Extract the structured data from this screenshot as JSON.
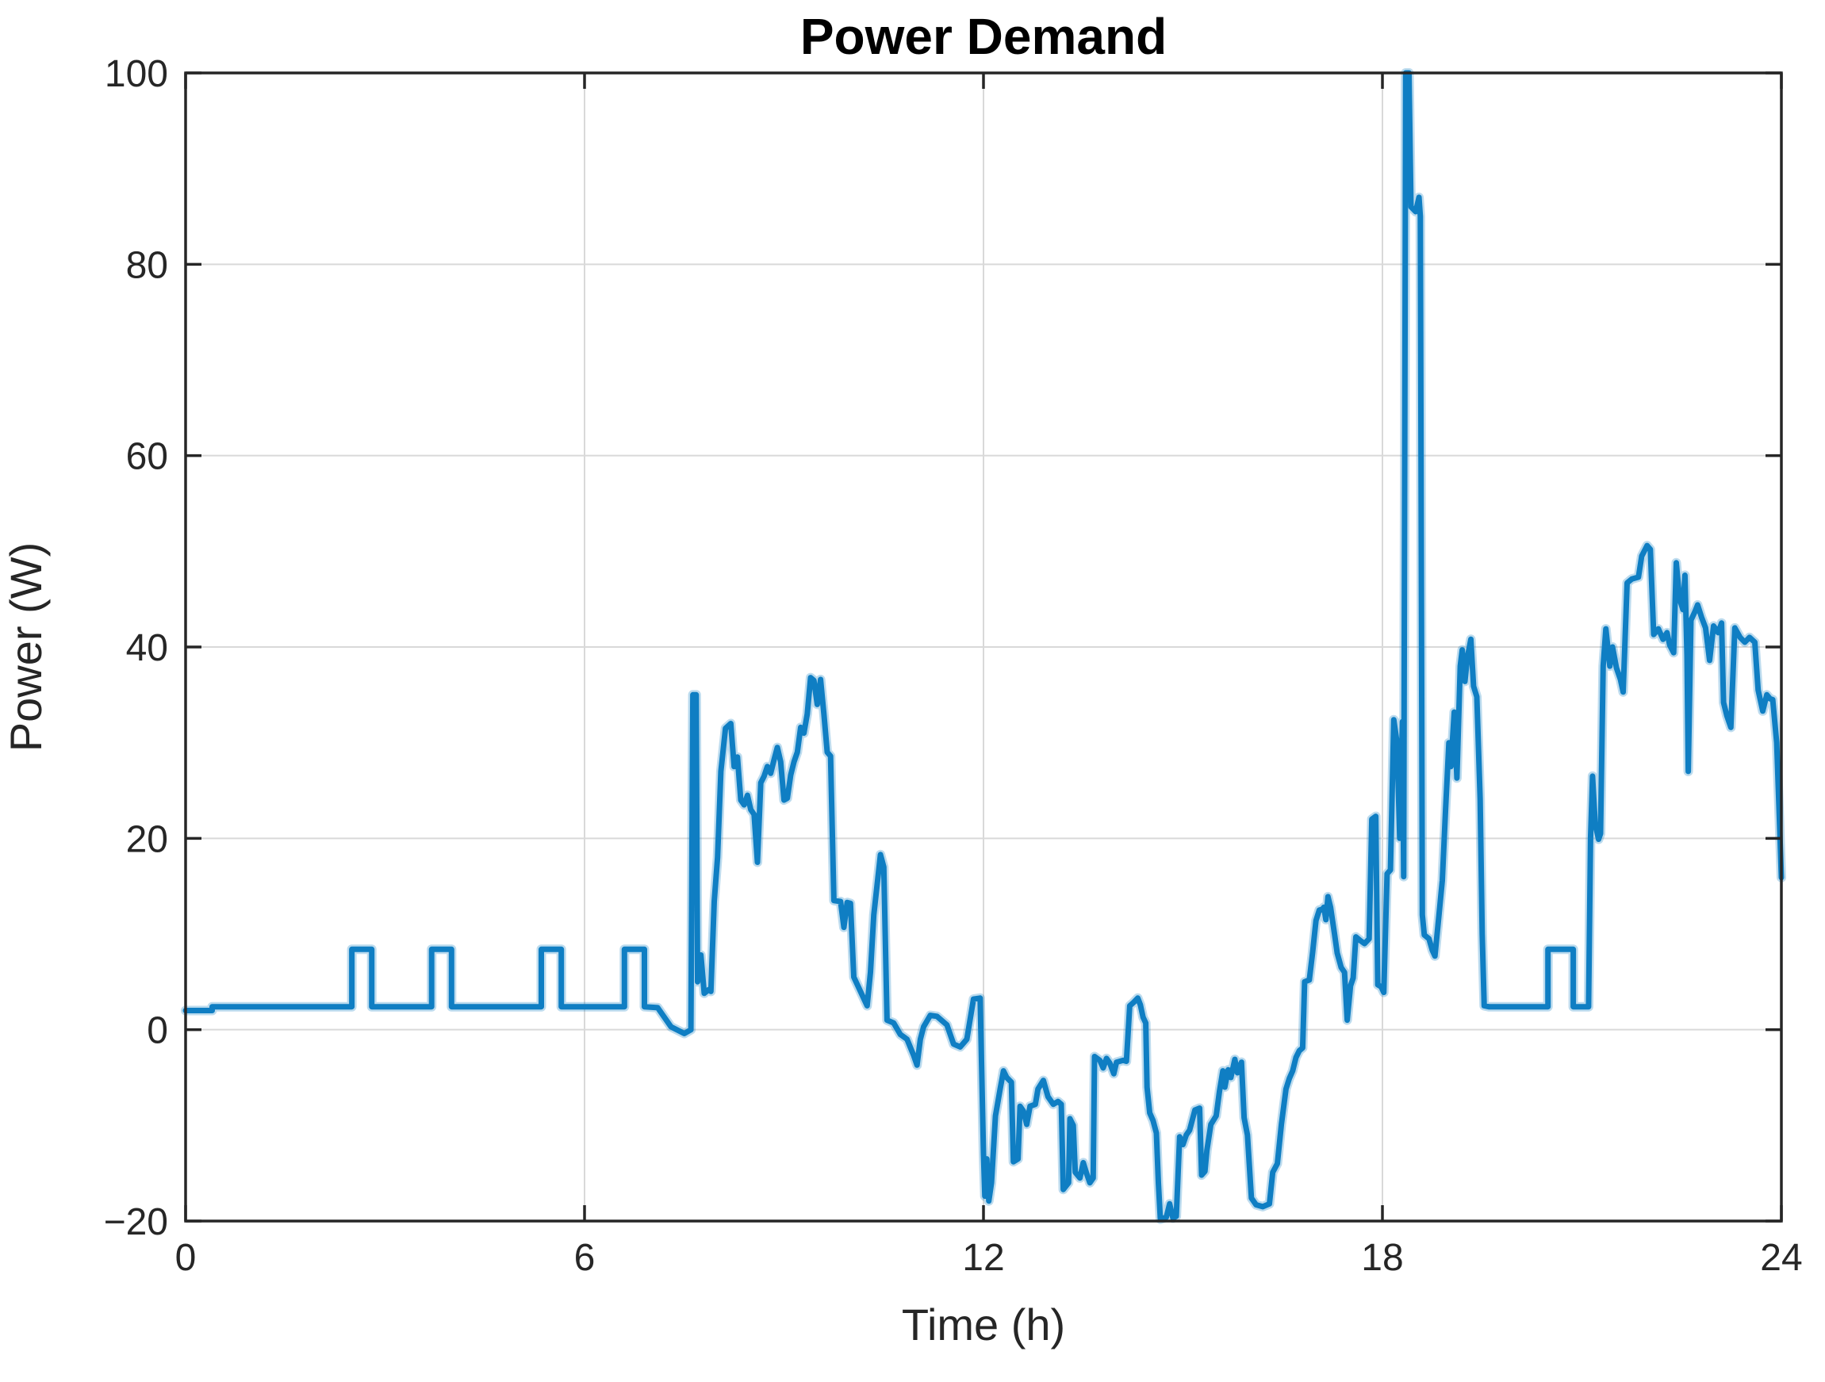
{
  "figure": {
    "title": "Power Demand",
    "background_color": "#ffffff"
  },
  "chart_data": {
    "type": "line",
    "title": "Power Demand",
    "xlabel": "Time (h)",
    "ylabel": "Power (W)",
    "xlim": [
      0,
      24
    ],
    "ylim": [
      -20,
      100
    ],
    "grid": true,
    "legend": "none",
    "line_color": "#0F7EC3",
    "line_halo_color": "rgba(15,126,195,0.28)",
    "grid_color": "#d9d9d9",
    "axis_color": "#262626",
    "x_ticks": [
      0,
      6,
      12,
      18,
      24
    ],
    "x_tick_labels": [
      "0",
      "6",
      "12",
      "18",
      "24"
    ],
    "y_ticks": [
      -20,
      0,
      20,
      40,
      60,
      80,
      100
    ],
    "y_tick_labels": [
      "−20",
      "0",
      "20",
      "40",
      "60",
      "80",
      "100"
    ],
    "series": [
      {
        "name": "power_demand",
        "points": [
          [
            0,
            2.0
          ],
          [
            0.4,
            2.0
          ],
          [
            0.4,
            2.4
          ],
          [
            2.5,
            2.4
          ],
          [
            2.5,
            8.4
          ],
          [
            2.8,
            8.4
          ],
          [
            2.8,
            2.4
          ],
          [
            3.7,
            2.4
          ],
          [
            3.7,
            8.4
          ],
          [
            4.0,
            8.4
          ],
          [
            4.0,
            2.4
          ],
          [
            5.35,
            2.4
          ],
          [
            5.35,
            8.4
          ],
          [
            5.65,
            8.4
          ],
          [
            5.65,
            2.4
          ],
          [
            6.6,
            2.4
          ],
          [
            6.6,
            8.4
          ],
          [
            6.9,
            8.4
          ],
          [
            6.9,
            2.4
          ],
          [
            7.1,
            2.3
          ],
          [
            7.3,
            0.3
          ],
          [
            7.5,
            -0.4
          ],
          [
            7.6,
            0.0
          ],
          [
            7.63,
            35
          ],
          [
            7.68,
            35
          ],
          [
            7.7,
            5
          ],
          [
            7.75,
            7.8
          ],
          [
            7.8,
            3.8
          ],
          [
            7.87,
            4.2
          ],
          [
            7.9,
            4.0
          ],
          [
            7.95,
            13.4
          ],
          [
            8.0,
            18
          ],
          [
            8.05,
            27
          ],
          [
            8.12,
            31.5
          ],
          [
            8.2,
            32
          ],
          [
            8.25,
            27.5
          ],
          [
            8.3,
            28.5
          ],
          [
            8.35,
            24
          ],
          [
            8.4,
            23.5
          ],
          [
            8.45,
            24.5
          ],
          [
            8.5,
            23
          ],
          [
            8.55,
            22.5
          ],
          [
            8.6,
            17.5
          ],
          [
            8.65,
            25.8
          ],
          [
            8.7,
            26.5
          ],
          [
            8.75,
            27.5
          ],
          [
            8.8,
            26.8
          ],
          [
            8.85,
            28.2
          ],
          [
            8.9,
            29.5
          ],
          [
            8.95,
            28
          ],
          [
            9.0,
            24
          ],
          [
            9.05,
            24.2
          ],
          [
            9.1,
            26.6
          ],
          [
            9.15,
            28
          ],
          [
            9.2,
            29
          ],
          [
            9.25,
            31.6
          ],
          [
            9.3,
            31
          ],
          [
            9.35,
            33
          ],
          [
            9.4,
            36.8
          ],
          [
            9.45,
            36.5
          ],
          [
            9.5,
            34
          ],
          [
            9.55,
            36.6
          ],
          [
            9.6,
            33
          ],
          [
            9.65,
            29
          ],
          [
            9.7,
            28.6
          ],
          [
            9.75,
            13.5
          ],
          [
            9.85,
            13.4
          ],
          [
            9.9,
            10.7
          ],
          [
            9.95,
            13.3
          ],
          [
            10.0,
            13.2
          ],
          [
            10.05,
            5.5
          ],
          [
            10.15,
            4.0
          ],
          [
            10.25,
            2.5
          ],
          [
            10.3,
            6
          ],
          [
            10.35,
            12
          ],
          [
            10.45,
            18.3
          ],
          [
            10.5,
            17
          ],
          [
            10.55,
            1.0
          ],
          [
            10.65,
            0.7
          ],
          [
            10.75,
            -0.5
          ],
          [
            10.85,
            -1.0
          ],
          [
            10.95,
            -2.7
          ],
          [
            11.0,
            -3.7
          ],
          [
            11.05,
            -1.0
          ],
          [
            11.1,
            0.3
          ],
          [
            11.2,
            1.5
          ],
          [
            11.3,
            1.4
          ],
          [
            11.45,
            0.5
          ],
          [
            11.55,
            -1.5
          ],
          [
            11.65,
            -1.8
          ],
          [
            11.75,
            -1.0
          ],
          [
            11.85,
            3.2
          ],
          [
            11.95,
            3.3
          ],
          [
            12.0,
            -13
          ],
          [
            12.02,
            -17.4
          ],
          [
            12.05,
            -13.5
          ],
          [
            12.08,
            -17.9
          ],
          [
            12.12,
            -16
          ],
          [
            12.18,
            -9
          ],
          [
            12.25,
            -6.2
          ],
          [
            12.3,
            -4.3
          ],
          [
            12.35,
            -5
          ],
          [
            12.42,
            -5.5
          ],
          [
            12.45,
            -13.8
          ],
          [
            12.52,
            -13.5
          ],
          [
            12.55,
            -8
          ],
          [
            12.6,
            -8.5
          ],
          [
            12.65,
            -9.9
          ],
          [
            12.7,
            -8
          ],
          [
            12.78,
            -7.8
          ],
          [
            12.82,
            -6.2
          ],
          [
            12.9,
            -5.3
          ],
          [
            12.97,
            -7
          ],
          [
            13.05,
            -7.8
          ],
          [
            13.12,
            -7.5
          ],
          [
            13.17,
            -7.8
          ],
          [
            13.2,
            -16.7
          ],
          [
            13.28,
            -16
          ],
          [
            13.3,
            -9.3
          ],
          [
            13.35,
            -10
          ],
          [
            13.38,
            -14.9
          ],
          [
            13.45,
            -15.5
          ],
          [
            13.5,
            -13.9
          ],
          [
            13.55,
            -15
          ],
          [
            13.6,
            -16
          ],
          [
            13.65,
            -15.5
          ],
          [
            13.67,
            -2.8
          ],
          [
            13.75,
            -3.2
          ],
          [
            13.8,
            -4
          ],
          [
            13.85,
            -3
          ],
          [
            13.9,
            -3.5
          ],
          [
            13.96,
            -4.6
          ],
          [
            14.0,
            -3.4
          ],
          [
            14.1,
            -3.2
          ],
          [
            14.15,
            -3.3
          ],
          [
            14.2,
            2.5
          ],
          [
            14.25,
            2.8
          ],
          [
            14.32,
            3.3
          ],
          [
            14.36,
            2.6
          ],
          [
            14.4,
            1.3
          ],
          [
            14.44,
            0.7
          ],
          [
            14.46,
            -6
          ],
          [
            14.5,
            -8.7
          ],
          [
            14.55,
            -9.5
          ],
          [
            14.6,
            -10.8
          ],
          [
            14.63,
            -16
          ],
          [
            14.66,
            -19.8
          ],
          [
            14.75,
            -19.6
          ],
          [
            14.8,
            -18.2
          ],
          [
            14.85,
            -19.7
          ],
          [
            14.9,
            -19.5
          ],
          [
            14.95,
            -11.2
          ],
          [
            15.0,
            -12
          ],
          [
            15.05,
            -11
          ],
          [
            15.1,
            -10.5
          ],
          [
            15.18,
            -8.4
          ],
          [
            15.25,
            -8.2
          ],
          [
            15.28,
            -15.2
          ],
          [
            15.33,
            -14.8
          ],
          [
            15.36,
            -12.6
          ],
          [
            15.42,
            -9.9
          ],
          [
            15.5,
            -9
          ],
          [
            15.55,
            -6.4
          ],
          [
            15.6,
            -4.3
          ],
          [
            15.63,
            -6
          ],
          [
            15.68,
            -4.2
          ],
          [
            15.72,
            -5
          ],
          [
            15.78,
            -3.1
          ],
          [
            15.82,
            -4.5
          ],
          [
            15.88,
            -3.4
          ],
          [
            15.92,
            -9.2
          ],
          [
            15.97,
            -11
          ],
          [
            16.03,
            -17.6
          ],
          [
            16.1,
            -18.3
          ],
          [
            16.2,
            -18.5
          ],
          [
            16.3,
            -18.2
          ],
          [
            16.35,
            -14.9
          ],
          [
            16.42,
            -14
          ],
          [
            16.48,
            -9.9
          ],
          [
            16.55,
            -6.2
          ],
          [
            16.6,
            -5.1
          ],
          [
            16.65,
            -4.3
          ],
          [
            16.7,
            -2.9
          ],
          [
            16.75,
            -2.2
          ],
          [
            16.8,
            -1.9
          ],
          [
            16.83,
            5.0
          ],
          [
            16.9,
            5.2
          ],
          [
            16.95,
            8.1
          ],
          [
            17.0,
            11.4
          ],
          [
            17.05,
            12.5
          ],
          [
            17.1,
            12.6
          ],
          [
            17.12,
            12.8
          ],
          [
            17.15,
            11.5
          ],
          [
            17.18,
            13.9
          ],
          [
            17.22,
            12.8
          ],
          [
            17.28,
            10
          ],
          [
            17.32,
            8
          ],
          [
            17.38,
            6.5
          ],
          [
            17.43,
            6.0
          ],
          [
            17.47,
            1.0
          ],
          [
            17.52,
            4.6
          ],
          [
            17.56,
            5.4
          ],
          [
            17.6,
            9.7
          ],
          [
            17.67,
            9.3
          ],
          [
            17.73,
            9.0
          ],
          [
            17.8,
            9.5
          ],
          [
            17.84,
            22.0
          ],
          [
            17.9,
            22.3
          ],
          [
            17.93,
            4.7
          ],
          [
            17.98,
            4.5
          ],
          [
            18.02,
            3.9
          ],
          [
            18.07,
            16.3
          ],
          [
            18.12,
            16.7
          ],
          [
            18.17,
            32.4
          ],
          [
            18.22,
            30
          ],
          [
            18.26,
            20
          ],
          [
            18.3,
            32.2
          ],
          [
            18.32,
            16
          ],
          [
            18.35,
            100
          ],
          [
            18.4,
            100
          ],
          [
            18.43,
            86
          ],
          [
            18.5,
            85.5
          ],
          [
            18.55,
            87
          ],
          [
            18.57,
            85
          ],
          [
            18.6,
            12
          ],
          [
            18.63,
            9.9
          ],
          [
            18.7,
            9.5
          ],
          [
            18.75,
            8.3
          ],
          [
            18.79,
            7.7
          ],
          [
            18.85,
            12
          ],
          [
            18.9,
            15.6
          ],
          [
            18.95,
            23
          ],
          [
            19.0,
            30
          ],
          [
            19.03,
            27.5
          ],
          [
            19.08,
            33.2
          ],
          [
            19.12,
            26.3
          ],
          [
            19.17,
            38
          ],
          [
            19.2,
            39.7
          ],
          [
            19.24,
            36.4
          ],
          [
            19.28,
            39
          ],
          [
            19.33,
            40.8
          ],
          [
            19.37,
            35.9
          ],
          [
            19.42,
            34.8
          ],
          [
            19.47,
            24.1
          ],
          [
            19.5,
            10
          ],
          [
            19.53,
            2.5
          ],
          [
            19.6,
            2.4
          ],
          [
            20.49,
            2.4
          ],
          [
            20.49,
            8.4
          ],
          [
            20.87,
            8.4
          ],
          [
            20.87,
            2.4
          ],
          [
            21.1,
            2.4
          ],
          [
            21.13,
            20
          ],
          [
            21.16,
            26.5
          ],
          [
            21.2,
            21.5
          ],
          [
            21.25,
            19.9
          ],
          [
            21.28,
            20.5
          ],
          [
            21.32,
            38
          ],
          [
            21.36,
            41.9
          ],
          [
            21.42,
            38
          ],
          [
            21.46,
            40
          ],
          [
            21.52,
            37.8
          ],
          [
            21.58,
            36.6
          ],
          [
            21.62,
            35.3
          ],
          [
            21.68,
            46.7
          ],
          [
            21.75,
            47.1
          ],
          [
            21.85,
            47.3
          ],
          [
            21.9,
            49.5
          ],
          [
            21.98,
            50.6
          ],
          [
            22.03,
            50.2
          ],
          [
            22.08,
            41.3
          ],
          [
            22.15,
            41.9
          ],
          [
            22.22,
            40.8
          ],
          [
            22.28,
            41.5
          ],
          [
            22.32,
            40.2
          ],
          [
            22.38,
            39.4
          ],
          [
            22.42,
            48.8
          ],
          [
            22.47,
            45
          ],
          [
            22.52,
            43.9
          ],
          [
            22.55,
            47.5
          ],
          [
            22.58,
            39.1
          ],
          [
            22.6,
            27
          ],
          [
            22.64,
            42.8
          ],
          [
            22.7,
            43.7
          ],
          [
            22.74,
            44.4
          ],
          [
            22.8,
            43.1
          ],
          [
            22.86,
            42
          ],
          [
            22.92,
            38.6
          ],
          [
            22.98,
            42.2
          ],
          [
            23.05,
            41.5
          ],
          [
            23.1,
            42.5
          ],
          [
            23.13,
            34.2
          ],
          [
            23.18,
            32.8
          ],
          [
            23.24,
            31.6
          ],
          [
            23.3,
            42
          ],
          [
            23.38,
            41
          ],
          [
            23.45,
            40.5
          ],
          [
            23.52,
            41
          ],
          [
            23.6,
            40.5
          ],
          [
            23.65,
            35.5
          ],
          [
            23.72,
            33.3
          ],
          [
            23.78,
            35
          ],
          [
            23.83,
            34.6
          ],
          [
            23.87,
            34.5
          ],
          [
            23.93,
            30
          ],
          [
            23.97,
            22
          ],
          [
            24.0,
            15.9
          ]
        ]
      }
    ]
  }
}
